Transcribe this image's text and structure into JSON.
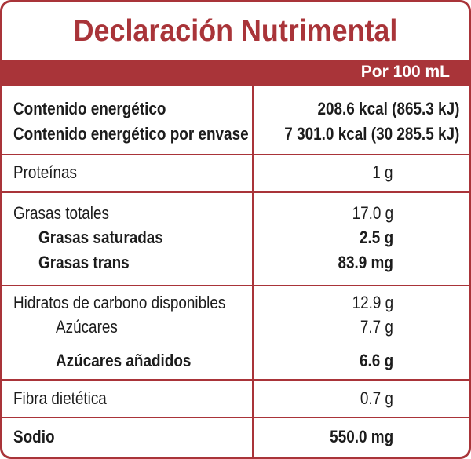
{
  "title": "Declaración Nutrimental",
  "header": {
    "per": "Por 100 mL"
  },
  "energy": {
    "row1_label": "Contenido energético",
    "row1_value": "208.6 kcal (865.3 kJ)",
    "row2_label": "Contenido energético por envase",
    "row2_value": "7 301.0 kcal (30 285.5 kJ)"
  },
  "proteins": {
    "label": "Proteínas",
    "value": "1 g"
  },
  "fats": {
    "total_label": "Grasas totales",
    "total_value": "17.0 g",
    "saturated_label": "Grasas saturadas",
    "saturated_value": "2.5 g",
    "trans_label": "Grasas trans",
    "trans_value": "83.9 mg"
  },
  "carbs": {
    "label": "Hidratos de carbono disponibles",
    "value": "12.9 g",
    "sugars_label": "Azúcares",
    "sugars_value": "7.7 g",
    "added_label": "Azúcares añadidos",
    "added_value": "6.6 g"
  },
  "fiber": {
    "label": "Fibra dietética",
    "value": "0.7 g"
  },
  "sodium": {
    "label": "Sodio",
    "value": "550.0 mg"
  },
  "colors": {
    "accent": "#a93439",
    "text": "#1c1c1c"
  }
}
